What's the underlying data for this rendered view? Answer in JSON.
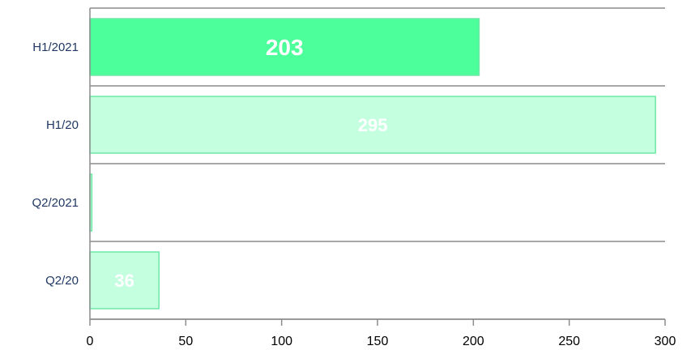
{
  "chart_data": {
    "type": "bar",
    "orientation": "horizontal",
    "categories": [
      "H1/2021",
      "H1/20",
      "Q2/2021",
      "Q2/20"
    ],
    "values": [
      203,
      295,
      1,
      36
    ],
    "data_labels": [
      "203",
      "295",
      "",
      "36"
    ],
    "xlim": [
      0,
      300
    ],
    "xticks": [
      0,
      50,
      100,
      150,
      200,
      250,
      300
    ],
    "grid": "horizontal separators between categories",
    "legend": "none",
    "title": "",
    "xlabel": "",
    "ylabel": "",
    "colors": {
      "highlight_fill": "#4dff9a",
      "light_fill": "#c4ffe0",
      "border": "#6ee8a6",
      "axis": "#8c8c8c"
    }
  }
}
